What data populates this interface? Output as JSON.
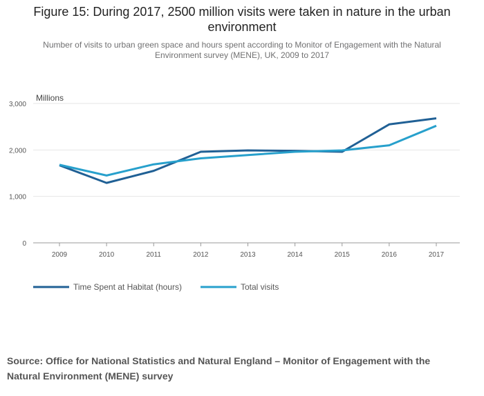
{
  "header": {
    "title": "Figure 15: During 2017, 2500 million visits were taken in nature in the urban environment",
    "subtitle": "Number of visits to urban green space and hours spent according to Monitor of Engagement with the Natural Environment survey (MENE), UK, 2009 to 2017"
  },
  "chart_data": {
    "type": "line",
    "title": "Figure 15: During 2017, 2500 million visits were taken in nature in the urban environment",
    "subtitle": "Number of visits to urban green space and hours spent according to Monitor of Engagement with the Natural Environment survey (MENE), UK, 2009 to 2017",
    "xlabel": "",
    "ylabel": "Millions",
    "x": [
      "2009",
      "2010",
      "2011",
      "2012",
      "2013",
      "2014",
      "2015",
      "2016",
      "2017"
    ],
    "ylim": [
      0,
      3000
    ],
    "yticks": [
      0,
      1000,
      2000,
      3000
    ],
    "ytick_labels": [
      "0",
      "1,000",
      "2,000",
      "3,000"
    ],
    "grid": true,
    "legend_position": "bottom-left",
    "series": [
      {
        "name": "Time Spent at Habitat (hours)",
        "color": "#206095",
        "values": [
          1670,
          1290,
          1550,
          1960,
          1990,
          1980,
          1960,
          2550,
          2680
        ]
      },
      {
        "name": "Total visits",
        "color": "#27a0cc",
        "values": [
          1680,
          1450,
          1690,
          1820,
          1890,
          1960,
          1990,
          2100,
          2520
        ]
      }
    ]
  },
  "source": {
    "text": "Source: Office for National Statistics and Natural England – Monitor of Engagement with the Natural Environment (MENE) survey"
  }
}
